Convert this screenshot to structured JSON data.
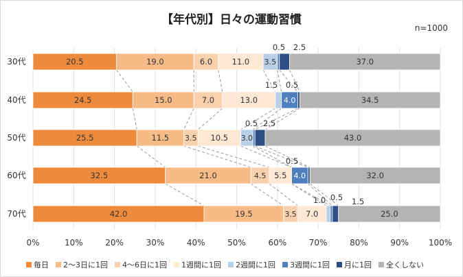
{
  "chart_data": {
    "type": "bar",
    "stacked": "horizontal-100%",
    "title": "【年代別】日々の運動習慣",
    "sample_size": "n=1000",
    "categories": [
      "30代",
      "40代",
      "50代",
      "60代",
      "70代"
    ],
    "xlim": [
      0,
      100
    ],
    "xticks": [
      "0%",
      "10%",
      "20%",
      "30%",
      "40%",
      "50%",
      "60%",
      "70%",
      "80%",
      "90%",
      "100%"
    ],
    "series": [
      {
        "name": "毎日",
        "color": "#ee8a3c",
        "values": [
          20.5,
          24.5,
          25.5,
          32.5,
          42.0
        ]
      },
      {
        "name": "2～3日に1回",
        "color": "#f6bb87",
        "values": [
          19.0,
          15.0,
          11.5,
          21.0,
          19.5
        ]
      },
      {
        "name": "4～6日に1回",
        "color": "#f9d2ad",
        "values": [
          6.0,
          7.0,
          3.5,
          4.5,
          3.5
        ]
      },
      {
        "name": "1週間に1回",
        "color": "#fde8d4",
        "values": [
          11.0,
          13.0,
          10.5,
          5.5,
          7.0
        ]
      },
      {
        "name": "2週間に1回",
        "color": "#b9cfe8",
        "values": [
          3.5,
          1.5,
          3.0,
          0.0,
          1.0
        ]
      },
      {
        "name": "3週間に1回",
        "color": "#4f7fbf",
        "values": [
          0.5,
          4.0,
          0.5,
          4.0,
          0.5
        ]
      },
      {
        "name": "月に1回",
        "color": "#2f4f84",
        "values": [
          2.5,
          0.5,
          2.5,
          0.5,
          1.5
        ]
      },
      {
        "name": "全くしない",
        "color": "#b4b4b4",
        "values": [
          37.0,
          34.5,
          43.0,
          32.0,
          25.0
        ]
      }
    ],
    "data_labels": [
      [
        "20.5",
        "19.0",
        "6.0",
        "11.0",
        "3.5",
        "0.5",
        "2.5",
        "37.0"
      ],
      [
        "24.5",
        "15.0",
        "7.0",
        "13.0",
        "1.5",
        "4.0",
        "0.5",
        "34.5"
      ],
      [
        "25.5",
        "11.5",
        "3.5",
        "10.5",
        "3.0",
        "0.5",
        "2.5",
        "43.0"
      ],
      [
        "32.5",
        "21.0",
        "4.5",
        "5.5",
        "",
        "4.0",
        "0.5",
        "32.0"
      ],
      [
        "42.0",
        "19.5",
        "3.5",
        "7.0",
        "1.0",
        "0.5",
        "1.5",
        "25.0"
      ]
    ],
    "legend_position": "bottom"
  }
}
